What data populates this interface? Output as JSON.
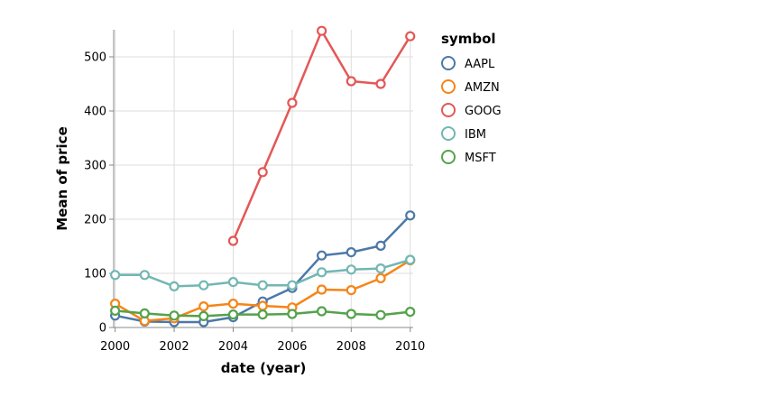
{
  "chart_data": {
    "type": "line",
    "x_axis": {
      "title": "date (year)",
      "domain": [
        1999.95,
        2010.1
      ],
      "ticks": [
        {
          "value": 2000,
          "label": "2000"
        },
        {
          "value": 2002,
          "label": "2002"
        },
        {
          "value": 2004,
          "label": "2004"
        },
        {
          "value": 2006,
          "label": "2006"
        },
        {
          "value": 2008,
          "label": "2008"
        },
        {
          "value": 2010,
          "label": "2010"
        }
      ]
    },
    "y_axis": {
      "title": "Mean of price",
      "domain": [
        0,
        550
      ],
      "ticks": [
        {
          "value": 0,
          "label": "0"
        },
        {
          "value": 100,
          "label": "100"
        },
        {
          "value": 200,
          "label": "200"
        },
        {
          "value": 300,
          "label": "300"
        },
        {
          "value": 400,
          "label": "400"
        },
        {
          "value": 500,
          "label": "500"
        }
      ]
    },
    "grid": true,
    "legend": {
      "title": "symbol",
      "position": "right"
    },
    "series": [
      {
        "name": "AAPL",
        "color": "#4c78a8",
        "x": [
          2000,
          2001,
          2002,
          2003,
          2004,
          2005,
          2006,
          2007,
          2008,
          2009,
          2010
        ],
        "values": [
          22,
          11,
          10,
          10,
          19,
          48,
          73,
          133,
          139,
          151,
          207
        ]
      },
      {
        "name": "AMZN",
        "color": "#f58518",
        "x": [
          2000,
          2001,
          2002,
          2003,
          2004,
          2005,
          2006,
          2007,
          2008,
          2009,
          2010
        ],
        "values": [
          44,
          12,
          17,
          39,
          44,
          40,
          37,
          70,
          69,
          91,
          124
        ]
      },
      {
        "name": "GOOG",
        "color": "#e45756",
        "x": [
          2004,
          2005,
          2006,
          2007,
          2008,
          2009,
          2010
        ],
        "values": [
          160,
          287,
          415,
          548,
          455,
          450,
          538
        ]
      },
      {
        "name": "IBM",
        "color": "#72b7b2",
        "x": [
          2000,
          2001,
          2002,
          2003,
          2004,
          2005,
          2006,
          2007,
          2008,
          2009,
          2010
        ],
        "values": [
          97,
          97,
          76,
          78,
          84,
          78,
          78,
          102,
          107,
          109,
          125
        ]
      },
      {
        "name": "MSFT",
        "color": "#54a24b",
        "x": [
          2000,
          2001,
          2002,
          2003,
          2004,
          2005,
          2006,
          2007,
          2008,
          2009,
          2010
        ],
        "values": [
          31,
          26,
          22,
          21,
          24,
          24,
          25,
          30,
          25,
          23,
          29
        ]
      }
    ]
  }
}
